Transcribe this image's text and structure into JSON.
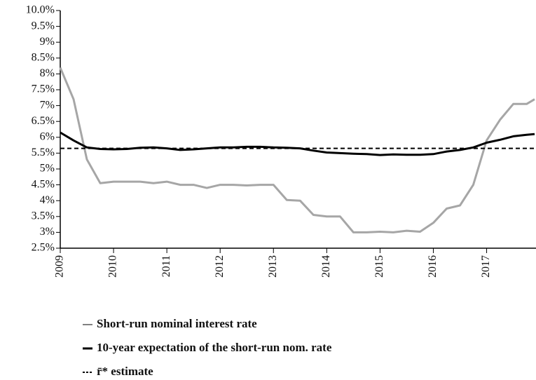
{
  "chart_data": {
    "type": "line",
    "x": [
      2009,
      2009.25,
      2009.5,
      2009.75,
      2010,
      2010.25,
      2010.5,
      2010.75,
      2011,
      2011.25,
      2011.5,
      2011.75,
      2012,
      2012.25,
      2012.5,
      2012.75,
      2013,
      2013.25,
      2013.5,
      2013.75,
      2014,
      2014.25,
      2014.5,
      2014.75,
      2015,
      2015.25,
      2015.5,
      2015.75,
      2016,
      2016.25,
      2016.5,
      2016.75,
      2017,
      2017.25,
      2017.5,
      2017.75,
      2017.9
    ],
    "series": [
      {
        "name": "Short-run nominal interest rate",
        "color": "#a6a6a6",
        "line_style": "solid",
        "width": 3,
        "values": [
          8.2,
          7.2,
          5.3,
          4.55,
          4.6,
          4.6,
          4.6,
          4.55,
          4.6,
          4.5,
          4.5,
          4.4,
          4.5,
          4.5,
          4.48,
          4.5,
          4.5,
          4.02,
          4.0,
          3.55,
          3.5,
          3.5,
          3.0,
          3.0,
          3.02,
          3.0,
          3.05,
          3.02,
          3.3,
          3.75,
          3.85,
          4.5,
          5.9,
          6.55,
          7.05,
          7.05,
          7.2
        ]
      },
      {
        "name": "10-year expectation of the short-run nom. rate",
        "color": "#000000",
        "line_style": "solid",
        "width": 3,
        "values": [
          6.15,
          5.9,
          5.68,
          5.63,
          5.62,
          5.63,
          5.67,
          5.68,
          5.65,
          5.6,
          5.62,
          5.65,
          5.68,
          5.68,
          5.7,
          5.7,
          5.68,
          5.67,
          5.65,
          5.58,
          5.52,
          5.5,
          5.48,
          5.47,
          5.44,
          5.46,
          5.45,
          5.45,
          5.47,
          5.55,
          5.6,
          5.68,
          5.83,
          5.92,
          6.03,
          6.08,
          6.1
        ]
      },
      {
        "name": "r̄* estimate",
        "color": "#000000",
        "line_style": "dashed",
        "width": 2,
        "values": [
          5.65,
          5.65,
          5.65,
          5.65,
          5.65,
          5.65,
          5.65,
          5.65,
          5.65,
          5.65,
          5.65,
          5.65,
          5.65,
          5.65,
          5.65,
          5.65,
          5.65,
          5.65,
          5.65,
          5.65,
          5.65,
          5.65,
          5.65,
          5.65,
          5.65,
          5.65,
          5.65,
          5.65,
          5.65,
          5.65,
          5.65,
          5.65,
          5.65,
          5.65,
          5.65,
          5.65,
          5.65
        ]
      }
    ],
    "xlim": [
      2009,
      2017.9
    ],
    "xticks": [
      2009,
      2010,
      2011,
      2012,
      2013,
      2014,
      2015,
      2016,
      2017
    ],
    "ylim": [
      2.5,
      10.0
    ],
    "yticks": [
      {
        "value": 2.5,
        "label": "2.5%"
      },
      {
        "value": 3,
        "label": "3%"
      },
      {
        "value": 3.5,
        "label": "3.5%"
      },
      {
        "value": 4,
        "label": "4%"
      },
      {
        "value": 4.5,
        "label": "4.5%"
      },
      {
        "value": 5,
        "label": "5%"
      },
      {
        "value": 5.5,
        "label": "5.5%"
      },
      {
        "value": 6,
        "label": "6%"
      },
      {
        "value": 6.5,
        "label": "6.5%"
      },
      {
        "value": 7,
        "label": "7%"
      },
      {
        "value": 7.5,
        "label": "7.5%"
      },
      {
        "value": 8,
        "label": "8%"
      },
      {
        "value": 8.5,
        "label": "8.5%"
      },
      {
        "value": 9,
        "label": "9%"
      },
      {
        "value": 9.5,
        "label": "9.5%"
      },
      {
        "value": 10.0,
        "label": "10.0%"
      }
    ],
    "grid": false
  }
}
